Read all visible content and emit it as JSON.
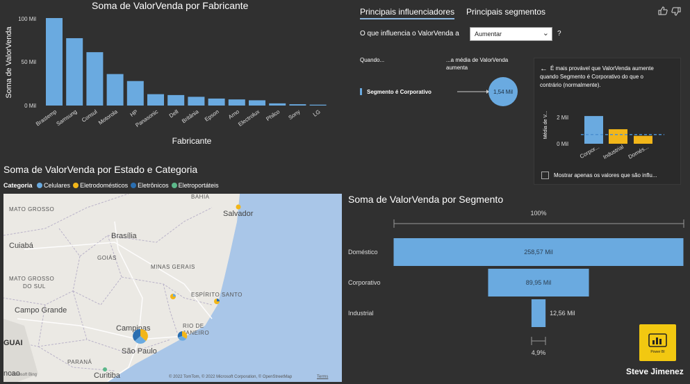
{
  "bar_chart": {
    "title": "Soma de ValorVenda por Fabricante",
    "xlabel": "Fabricante",
    "ylabel": "Soma de ValorVenda",
    "y_ticks": [
      "100 Mil",
      "50 Mil",
      "0 Mil"
    ],
    "bar_color": "#6aaae0"
  },
  "chart_data": [
    {
      "type": "bar",
      "title": "Soma de ValorVenda por Fabricante",
      "xlabel": "Fabricante",
      "ylabel": "Soma de ValorVenda",
      "categories": [
        "Brastemp",
        "Samsung",
        "Consul",
        "Motorola",
        "HP",
        "Panasonic",
        "Dell",
        "Britânia",
        "Epson",
        "Arno",
        "Electrolux",
        "Philco",
        "Sony",
        "LG"
      ],
      "values": [
        100,
        77,
        61,
        36,
        28,
        13,
        12,
        10,
        8,
        7,
        6,
        2.5,
        1.5,
        1
      ],
      "ylim": [
        0,
        100
      ],
      "unit": "Mil"
    },
    {
      "type": "bar",
      "title": "Soma de ValorVenda por Segmento",
      "categories": [
        "Doméstico",
        "Corporativo",
        "Industrial"
      ],
      "values": [
        258.57,
        89.95,
        12.56
      ],
      "labels": [
        "258,57 Mil",
        "89,95 Mil",
        "12,56 Mil"
      ],
      "top_label": "100%",
      "bottom_label": "4,9%"
    }
  ],
  "key_influencers": {
    "tab_active": "Principais influenciadores",
    "tab_other": "Principais segmentos",
    "question": "O que influencia o ValorVenda a",
    "dropdown_value": "Aumentar",
    "help": "?",
    "when_label": "Quando...",
    "avg_label_1": "...a média de ValorVenda",
    "avg_label_2": "aumenta",
    "factor": "Segmento é Corporativo",
    "factor_value": "1,54 Mil",
    "detail_line1": "É mais provável que ValorVenda aumente",
    "detail_line2": "quando Segmento é Corporativo do que o",
    "detail_line3": "contrário (normalmente).",
    "detail_ylabel": "Média de V...",
    "detail_ticks": [
      "2 Mil",
      "0 Mil"
    ],
    "detail_categories": [
      "Corpor...",
      "Industrial",
      "Domés..."
    ],
    "detail_values": [
      2.1,
      1.1,
      0.6
    ],
    "detail_avg": 0.7,
    "checkbox_label": "Mostrar apenas os valores que são influ...",
    "accent": "#6aaae0",
    "other": "#f2b619"
  },
  "map": {
    "title": "Soma de ValorVenda por Estado e Categoria",
    "legend_title": "Categoria",
    "legend": [
      {
        "name": "Celulares",
        "color": "#6aaae0"
      },
      {
        "name": "Eletrodomésticos",
        "color": "#f2b619"
      },
      {
        "name": "Eletrônicos",
        "color": "#2a6eb0"
      },
      {
        "name": "Eletroportáteis",
        "color": "#5cb88a"
      }
    ],
    "places": {
      "mato_grosso": "MATO GROSSO",
      "bahia": "BAHIA",
      "salvador": "Salvador",
      "brasilia": "Brasília",
      "cuiaba": "Cuiabá",
      "goias": "GOIÁS",
      "minas": "MINAS GERAIS",
      "mato_grosso_sul_1": "MATO GROSSO",
      "mato_grosso_sul_2": "DO SUL",
      "espirito_santo": "ESPÍRITO SANTO",
      "campo_grande": "Campo Grande",
      "campinas": "Campinas",
      "rio_1": "RIO DE",
      "rio_2": "JANEIRO",
      "sao_paulo": "São Paulo",
      "parana": "PARANÁ",
      "curitiba": "Curitiba",
      "guai": "GUAI",
      "ncao": "ncao"
    },
    "copyright": "© 2022 TomTom, © 2022 Microsoft Corporation, © OpenStreetMap",
    "terms": "Terms",
    "bing": "Microsoft Bing"
  },
  "author": "Steve Jimenez",
  "logo_text": "Power BI"
}
